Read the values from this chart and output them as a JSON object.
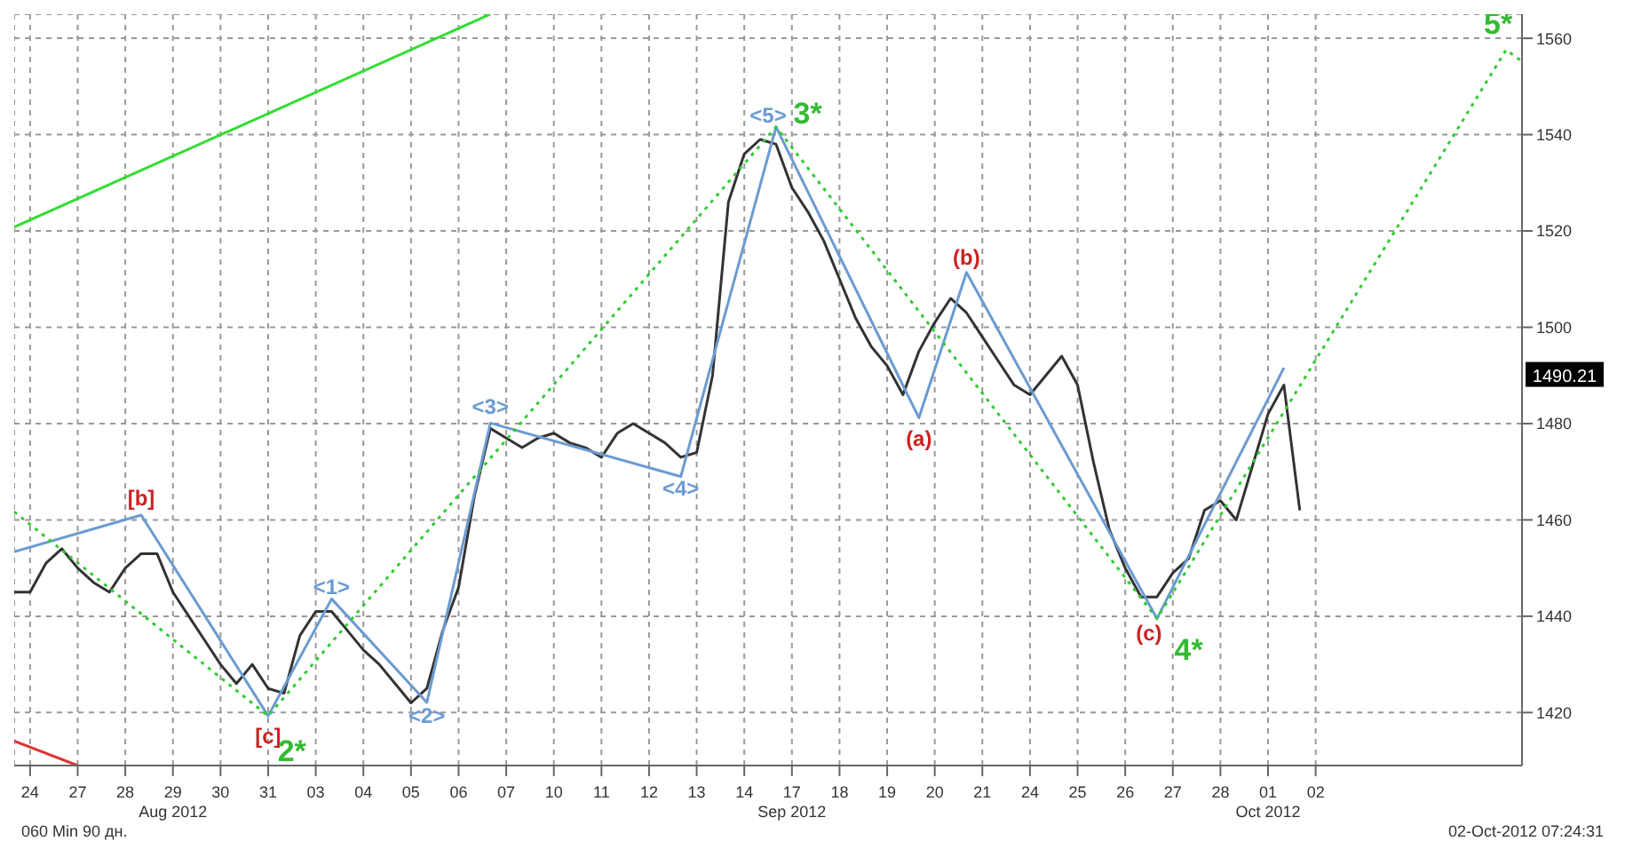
{
  "chart_data": {
    "type": "line",
    "ylim": [
      1409,
      1565
    ],
    "yticks": [
      1420,
      1440,
      1460,
      1480,
      1500,
      1520,
      1540,
      1560
    ],
    "categories": [
      null,
      "24",
      null,
      null,
      "27",
      null,
      null,
      "28",
      null,
      null,
      "29\nAug 2012",
      null,
      null,
      "30",
      null,
      null,
      "31",
      null,
      null,
      "03",
      null,
      null,
      "04",
      null,
      null,
      "05",
      null,
      null,
      "06",
      null,
      null,
      "07",
      null,
      null,
      "10",
      null,
      null,
      "11",
      null,
      null,
      "12",
      null,
      null,
      "13",
      null,
      null,
      "14",
      null,
      null,
      "17\nSep 2012",
      null,
      null,
      "18",
      null,
      null,
      "19",
      null,
      null,
      "20",
      null,
      null,
      "21",
      null,
      null,
      "24",
      null,
      null,
      "25",
      null,
      null,
      "26",
      null,
      null,
      "27",
      null,
      null,
      "28",
      null,
      null,
      "01\nOct 2012",
      null,
      null,
      "02",
      null,
      null,
      null,
      null,
      null,
      null,
      null,
      null,
      null,
      null,
      null,
      null,
      null
    ],
    "grid": true,
    "legend": false,
    "marker": "none",
    "line_style": "solid",
    "series": [
      {
        "color": "#333333",
        "values": [
          1445,
          1445,
          1451,
          1454,
          1450,
          1447,
          1445,
          1450,
          1453,
          1453,
          1445,
          1440,
          1435,
          1430,
          1426,
          1430,
          1425,
          1424,
          1436,
          1441,
          1441,
          1437,
          1433,
          1430,
          1426,
          1422,
          1425,
          1437,
          1446,
          1465,
          1479,
          1477,
          1475,
          1477,
          1478,
          1476,
          1475,
          1473,
          1478,
          1480,
          1478,
          1476,
          1473,
          1474,
          1490,
          1526,
          1536,
          1539,
          1538,
          1529,
          1524,
          1518,
          1510,
          1502,
          1496,
          1492,
          1486,
          1495,
          1501,
          1506,
          1503,
          1498,
          1493,
          1488,
          1486,
          1490,
          1494,
          1488,
          1472,
          1458,
          1450,
          1444,
          1444,
          1449,
          1452,
          1462,
          1464,
          1460,
          1471,
          1482,
          1488,
          1462,
          null,
          null,
          null,
          null,
          null,
          null,
          null,
          null,
          null,
          null,
          null,
          null,
          null,
          null
        ]
      },
      {
        "color": "#6b9bd1",
        "values": [
          1453.4,
          null,
          null,
          null,
          null,
          null,
          null,
          null,
          1461,
          null,
          null,
          null,
          null,
          null,
          null,
          null,
          1419.3,
          null,
          null,
          null,
          1443.6,
          null,
          null,
          null,
          null,
          null,
          1422.1,
          null,
          null,
          null,
          1480.1,
          null,
          null,
          null,
          null,
          null,
          null,
          null,
          null,
          null,
          null,
          null,
          1469,
          null,
          null,
          null,
          null,
          null,
          1541.6,
          null,
          null,
          null,
          null,
          null,
          null,
          null,
          null,
          1481.2,
          null,
          null,
          1511.4,
          null,
          null,
          null,
          null,
          null,
          null,
          null,
          null,
          null,
          null,
          null,
          1439.5,
          null,
          null,
          null,
          null,
          null,
          null,
          null,
          1491.6,
          null,
          null,
          null,
          null,
          null,
          null,
          null,
          null,
          null,
          null,
          null,
          null,
          null,
          null,
          null
        ]
      },
      {
        "color": "#33cc33",
        "line_style": "dotted",
        "values": [
          1461.7,
          null,
          null,
          null,
          null,
          null,
          null,
          null,
          null,
          null,
          null,
          null,
          null,
          null,
          null,
          null,
          1419.3,
          null,
          null,
          null,
          null,
          null,
          null,
          null,
          null,
          null,
          null,
          null,
          null,
          null,
          null,
          null,
          null,
          null,
          null,
          null,
          null,
          null,
          null,
          null,
          null,
          null,
          null,
          null,
          null,
          null,
          null,
          null,
          1541.6,
          null,
          null,
          null,
          null,
          null,
          null,
          null,
          null,
          null,
          null,
          null,
          null,
          null,
          null,
          null,
          null,
          null,
          null,
          null,
          null,
          null,
          null,
          null,
          1439.5,
          null,
          null,
          null,
          null,
          null,
          null,
          null,
          null,
          null,
          null,
          null,
          null,
          null,
          null,
          null,
          null,
          null,
          null,
          null,
          null,
          null,
          1557.6,
          1555.2
        ]
      },
      {
        "color": "#33dd33",
        "values": [
          1520.8,
          null,
          null,
          null,
          null,
          null,
          null,
          null,
          null,
          null,
          null,
          null,
          null,
          null,
          null,
          null,
          null,
          null,
          null,
          null,
          null,
          null,
          null,
          null,
          null,
          null,
          null,
          null,
          null,
          null,
          1565,
          null,
          null,
          null,
          null,
          null,
          null,
          null,
          null,
          null,
          null,
          null,
          null,
          null,
          null,
          null,
          null,
          null,
          null,
          null,
          null,
          null,
          null,
          null,
          null,
          null,
          null,
          null,
          null,
          null,
          null,
          null,
          null,
          null,
          null,
          null,
          null,
          null,
          null,
          null,
          null,
          null,
          null,
          null,
          null,
          null,
          null,
          null,
          null,
          null,
          null,
          null,
          null,
          null,
          null,
          null,
          null,
          null,
          null,
          null,
          null,
          null,
          null,
          null,
          null,
          null
        ]
      },
      {
        "color": "#dd3333",
        "values": [
          1414.1,
          null,
          null,
          null,
          1409,
          null,
          null,
          null,
          null,
          null,
          null,
          null,
          null,
          null,
          null,
          null,
          null,
          null,
          null,
          null,
          null,
          null,
          null,
          null,
          null,
          null,
          null,
          null,
          null,
          null,
          null,
          null,
          null,
          null,
          null,
          null,
          null,
          null,
          null,
          null,
          null,
          null,
          null,
          null,
          null,
          null,
          null,
          null,
          null,
          null,
          null,
          null,
          null,
          null,
          null,
          null,
          null,
          null,
          null,
          null,
          null,
          null,
          null,
          null,
          null,
          null,
          null,
          null,
          null,
          null,
          null,
          null,
          null,
          null,
          null,
          null,
          null,
          null,
          null,
          null,
          null,
          null,
          null,
          null,
          null,
          null,
          null,
          null,
          null,
          null,
          null,
          null,
          null,
          null,
          null,
          null
        ]
      }
    ],
    "annotations": [
      "[b]",
      "[c]",
      "2*",
      "<1>",
      "<2>",
      "<3>",
      "<4>",
      "<5>",
      "3*",
      "(a)",
      "(b)",
      "(c)",
      "4*",
      "5*",
      "1490.21",
      "060 Min 90 дн.",
      "02-Oct-2012 07:24:31"
    ]
  }
}
